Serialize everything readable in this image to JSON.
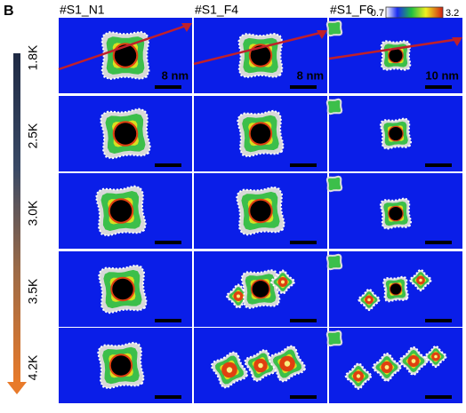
{
  "panel_label": "B",
  "columns": [
    "#S1_N1",
    "#S1_F4",
    "#S1_F6"
  ],
  "colorbar": {
    "min": "0.7",
    "max": "3.2"
  },
  "rows": [
    "1.8K",
    "2.5K",
    "3.0K",
    "3.5K",
    "4.2K"
  ],
  "scale_bars": [
    "8 nm",
    "8 nm",
    "10 nm"
  ]
}
